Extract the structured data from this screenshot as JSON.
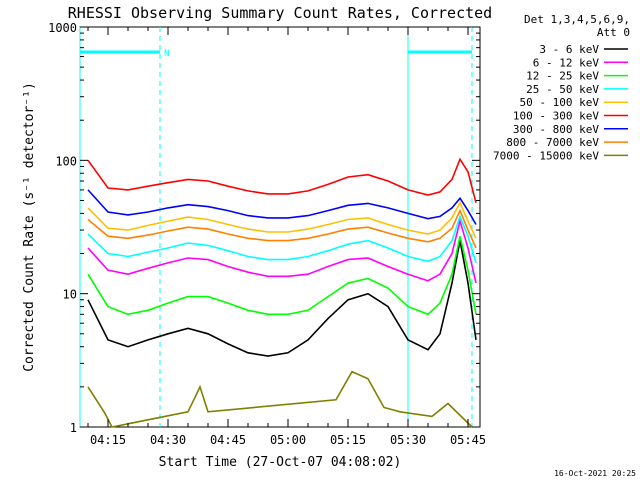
{
  "page_title": "RHESSI Observing Summary Count Rates, Corrected",
  "footer_timestamp": "16-Oct-2021 20:25",
  "chart_data": {
    "type": "line",
    "title": "RHESSI Observing Summary Count Rates, Corrected",
    "xlabel": "Start Time (27-Oct-07 04:08:02)",
    "ylabel": "Corrected Count Rate (s⁻¹ detector⁻¹)",
    "yscale": "log",
    "xlim": [
      "04:08",
      "05:48"
    ],
    "ylim": [
      1,
      1000
    ],
    "x_ticks": [
      "04:15",
      "04:30",
      "04:45",
      "05:00",
      "05:15",
      "05:30",
      "05:45"
    ],
    "y_ticks": [
      "1",
      "10",
      "100",
      "1000"
    ],
    "legend_header": [
      "Det 1,3,4,5,6,9,",
      "Att 0"
    ],
    "legend_position": "right",
    "series": [
      {
        "name": "3 - 6 keV",
        "color": "#000000",
        "x": [
          "04:10",
          "04:15",
          "04:20",
          "04:25",
          "04:30",
          "04:35",
          "04:40",
          "04:45",
          "04:50",
          "04:55",
          "05:00",
          "05:05",
          "05:10",
          "05:15",
          "05:20",
          "05:25",
          "05:30",
          "05:35",
          "05:38",
          "05:41",
          "05:43",
          "05:45",
          "05:47"
        ],
        "y": [
          9,
          4.5,
          4,
          4.5,
          5,
          5.5,
          5,
          4.2,
          3.6,
          3.4,
          3.6,
          4.5,
          6.5,
          9,
          10,
          8,
          4.5,
          3.8,
          5,
          12,
          25,
          12,
          4.5
        ]
      },
      {
        "name": "6 - 12 keV",
        "color": "#ff00ff",
        "x": [
          "04:10",
          "04:15",
          "04:20",
          "04:25",
          "04:30",
          "04:35",
          "04:40",
          "04:45",
          "04:50",
          "04:55",
          "05:00",
          "05:05",
          "05:10",
          "05:15",
          "05:20",
          "05:25",
          "05:30",
          "05:35",
          "05:38",
          "05:41",
          "05:43",
          "05:45",
          "05:47"
        ],
        "y": [
          22,
          15,
          14,
          15.5,
          17,
          18.5,
          18,
          16,
          14.5,
          13.5,
          13.5,
          14,
          16,
          18,
          18.5,
          16,
          14,
          12.5,
          14,
          20,
          35,
          22,
          12
        ]
      },
      {
        "name": "12 - 25 keV",
        "color": "#00ff00",
        "x": [
          "04:10",
          "04:15",
          "04:20",
          "04:25",
          "04:30",
          "04:35",
          "04:40",
          "04:45",
          "04:50",
          "04:55",
          "05:00",
          "05:05",
          "05:10",
          "05:15",
          "05:20",
          "05:25",
          "05:30",
          "05:35",
          "05:38",
          "05:41",
          "05:43",
          "05:45",
          "05:47"
        ],
        "y": [
          14,
          8,
          7,
          7.5,
          8.5,
          9.5,
          9.5,
          8.5,
          7.5,
          7,
          7,
          7.5,
          9.5,
          12,
          13,
          11,
          8,
          7,
          8.5,
          14,
          27,
          15,
          7
        ]
      },
      {
        "name": "25 - 50 keV",
        "color": "#00ffff",
        "x": [
          "04:10",
          "04:15",
          "04:20",
          "04:25",
          "04:30",
          "04:35",
          "04:40",
          "04:45",
          "04:50",
          "04:55",
          "05:00",
          "05:05",
          "05:10",
          "05:15",
          "05:20",
          "05:25",
          "05:30",
          "05:35",
          "05:38",
          "05:41",
          "05:43",
          "05:45",
          "05:47"
        ],
        "y": [
          28,
          20,
          19,
          20.5,
          22,
          24,
          23,
          21,
          19,
          18,
          18,
          19,
          21,
          23.5,
          25,
          22,
          19,
          17.5,
          19,
          25,
          38,
          27,
          17
        ]
      },
      {
        "name": "50 - 100 keV",
        "color": "#ffbf00",
        "x": [
          "04:10",
          "04:15",
          "04:20",
          "04:25",
          "04:30",
          "04:35",
          "04:40",
          "04:45",
          "04:50",
          "04:55",
          "05:00",
          "05:05",
          "05:10",
          "05:15",
          "05:20",
          "05:25",
          "05:30",
          "05:35",
          "05:38",
          "05:41",
          "05:43",
          "05:45",
          "05:47"
        ],
        "y": [
          44,
          31,
          30,
          32.5,
          35,
          37.5,
          36,
          33,
          30.5,
          29,
          29,
          30.5,
          33,
          36,
          37,
          33,
          30,
          28,
          30,
          37,
          48,
          35,
          26
        ]
      },
      {
        "name": "100 - 300 keV",
        "color": "#ff0000",
        "x": [
          "04:10",
          "04:15",
          "04:20",
          "04:25",
          "04:30",
          "04:35",
          "04:40",
          "04:45",
          "04:50",
          "04:55",
          "05:00",
          "05:05",
          "05:10",
          "05:15",
          "05:20",
          "05:25",
          "05:30",
          "05:35",
          "05:38",
          "05:41",
          "05:43",
          "05:45",
          "05:47"
        ],
        "y": [
          100,
          62,
          60,
          64,
          68,
          72,
          70,
          64,
          59,
          56,
          56,
          59,
          66,
          75,
          78,
          70,
          60,
          55,
          58,
          72,
          102,
          82,
          48
        ]
      },
      {
        "name": "300 - 800 keV",
        "color": "#0000ff",
        "x": [
          "04:10",
          "04:15",
          "04:20",
          "04:25",
          "04:30",
          "04:35",
          "04:40",
          "04:45",
          "04:50",
          "04:55",
          "05:00",
          "05:05",
          "05:10",
          "05:15",
          "05:20",
          "05:25",
          "05:30",
          "05:35",
          "05:38",
          "05:41",
          "05:43",
          "05:45",
          "05:47"
        ],
        "y": [
          60,
          41,
          39,
          41,
          44,
          46.5,
          45,
          42,
          38.5,
          37,
          37,
          38.5,
          42,
          46,
          47.5,
          44,
          40,
          36.5,
          38,
          44,
          52,
          42,
          33
        ]
      },
      {
        "name": "800 - 7000 keV",
        "color": "#ff8000",
        "x": [
          "04:10",
          "04:15",
          "04:20",
          "04:25",
          "04:30",
          "04:35",
          "04:40",
          "04:45",
          "04:50",
          "04:55",
          "05:00",
          "05:05",
          "05:10",
          "05:15",
          "05:20",
          "05:25",
          "05:30",
          "05:35",
          "05:38",
          "05:41",
          "05:43",
          "05:45",
          "05:47"
        ],
        "y": [
          36,
          27,
          26,
          27.5,
          29.5,
          31.5,
          30.5,
          28,
          26,
          25,
          25,
          26,
          28,
          30.5,
          31.5,
          28.5,
          26,
          24.5,
          26,
          31,
          42,
          30,
          22
        ]
      },
      {
        "name": "7000 - 15000 keV",
        "color": "#808000",
        "x": [
          "04:10",
          "04:14",
          "04:16",
          "04:35",
          "04:38",
          "04:40",
          "05:12",
          "05:16",
          "05:20",
          "05:24",
          "05:28",
          "05:36",
          "05:40",
          "05:46"
        ],
        "y": [
          2,
          1.3,
          1,
          1.3,
          2,
          1.3,
          1.6,
          2.6,
          2.3,
          1.4,
          1.3,
          1.2,
          1.5,
          1
        ]
      }
    ],
    "attenuator_bars": {
      "color": "#00ffff",
      "x_ranges": [
        [
          "04:08",
          "04:28"
        ],
        [
          "05:30",
          "05:46"
        ]
      ],
      "y": 650,
      "marker": "N"
    },
    "vertical_markers": [
      {
        "x": "04:08",
        "style": "solid"
      },
      {
        "x": "04:28",
        "style": "dashed"
      },
      {
        "x": "05:30",
        "style": "solid"
      },
      {
        "x": "05:46",
        "style": "dashed"
      }
    ]
  }
}
